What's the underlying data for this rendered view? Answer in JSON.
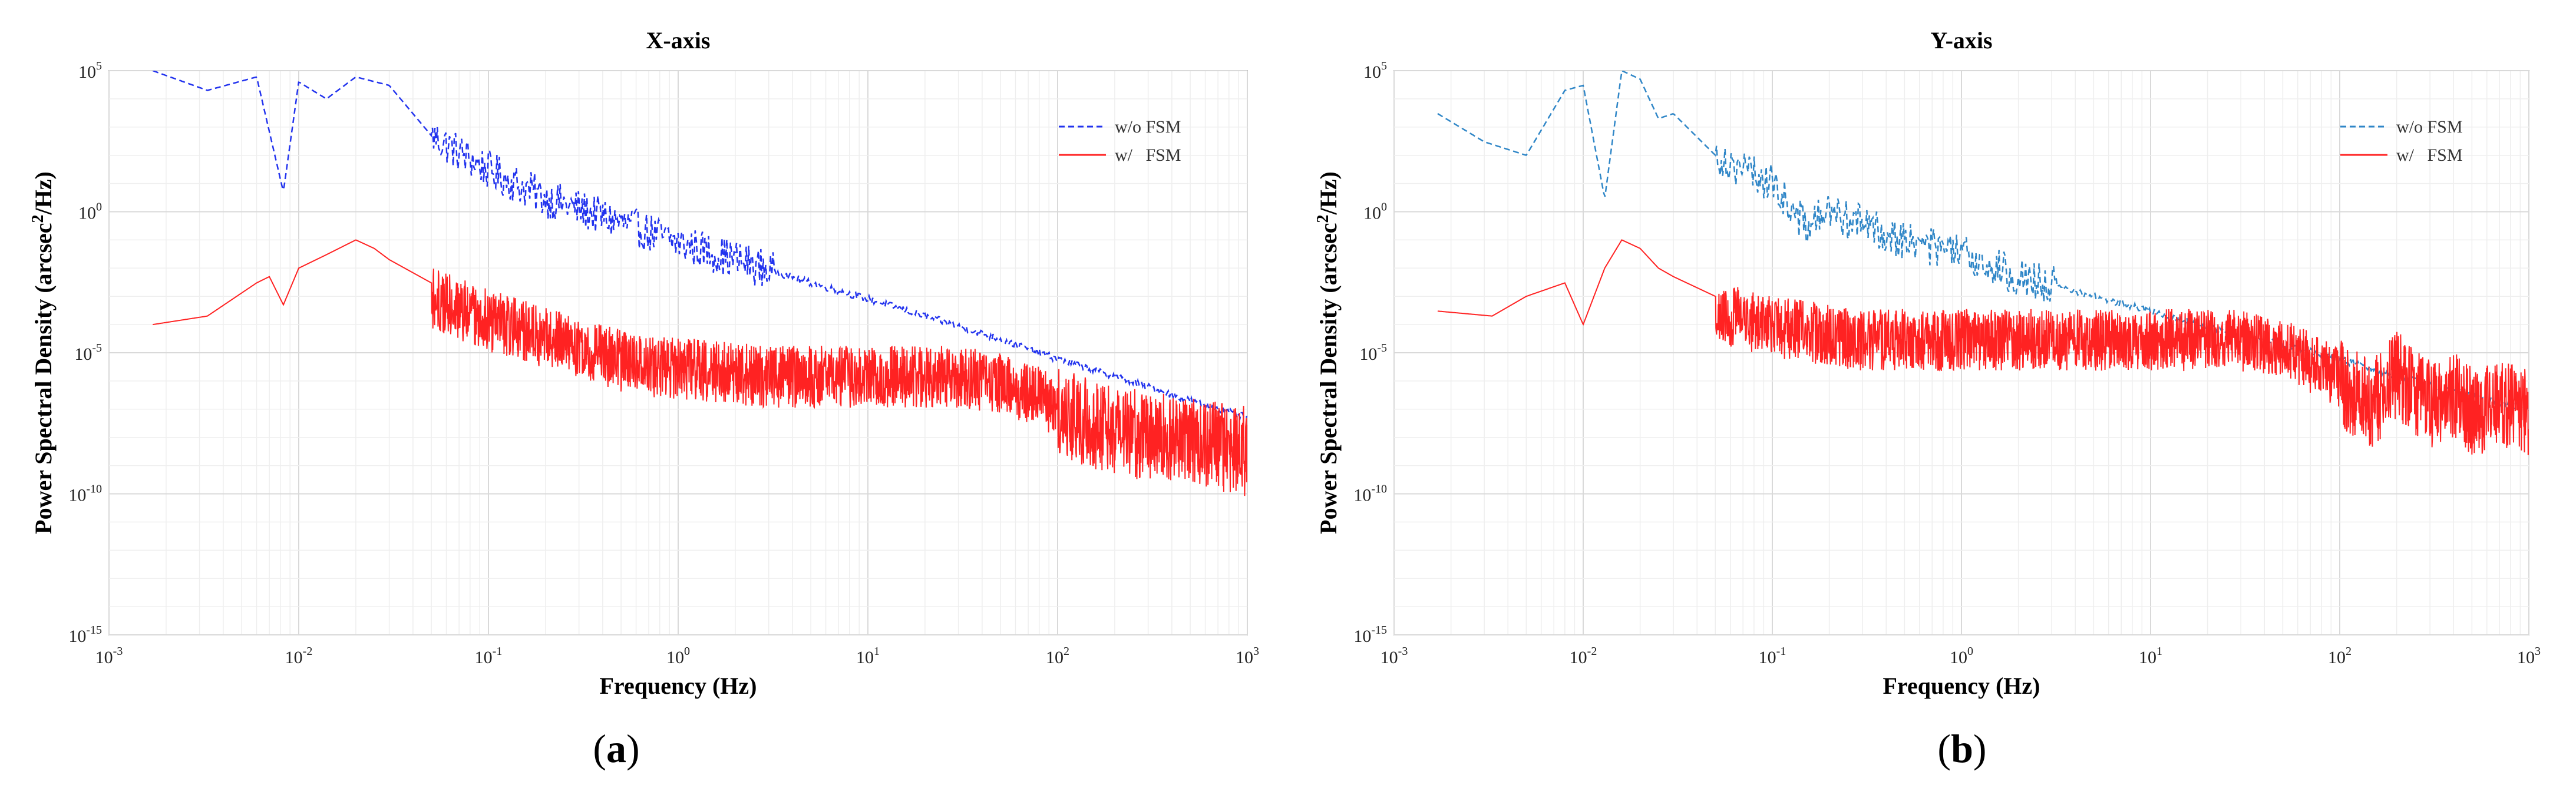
{
  "captions": [
    {
      "open": "(",
      "letter": "a",
      "close": ")"
    },
    {
      "open": "(",
      "letter": "b",
      "close": ")"
    }
  ],
  "chart_data": [
    {
      "type": "line",
      "title": "X-axis",
      "xlabel": "Frequency (Hz)",
      "ylabel_main": "Power Spectral Density (arcsec",
      "ylabel_sup": "2",
      "ylabel_end": "/Hz)",
      "xscale": "log",
      "yscale": "log",
      "xlim": [
        0.001,
        1000
      ],
      "ylim": [
        1e-15,
        100000
      ],
      "grid": true,
      "legend_position": "top-right",
      "x_tick_exponents": [
        "-3",
        "-2",
        "-1",
        "0",
        "1",
        "2",
        "3"
      ],
      "y_tick_exponents": [
        "-15",
        "-10",
        "-5",
        "0",
        "5"
      ],
      "tick_base": "10",
      "series": [
        {
          "name": "w/o FSM",
          "color": "#2233ee",
          "dash": "dashed",
          "x": [
            0.0017,
            0.0033,
            0.006,
            0.0083,
            0.01,
            0.014,
            0.02,
            0.03,
            0.05,
            0.1,
            0.2,
            0.5,
            1,
            2,
            5,
            10,
            20,
            50,
            100,
            200,
            500,
            1000
          ],
          "y": [
            100000,
            20000,
            60000,
            5,
            40000,
            10000,
            60000,
            30000,
            500,
            30,
            3,
            0.4,
            0.08,
            0.02,
            0.003,
            0.0008,
            0.0002,
            3e-05,
            6e-06,
            1.5e-06,
            2e-07,
            5e-08
          ]
        },
        {
          "name": "w/   FSM",
          "color": "#ff2222",
          "dash": "solid",
          "x": [
            0.0017,
            0.0033,
            0.006,
            0.007,
            0.0083,
            0.01,
            0.014,
            0.02,
            0.025,
            0.03,
            0.05,
            0.1,
            0.3,
            0.7,
            1,
            3,
            10,
            30,
            50,
            100,
            200,
            500,
            1000
          ],
          "y": [
            0.0001,
            0.0002,
            0.003,
            0.005,
            0.0005,
            0.01,
            0.03,
            0.1,
            0.05,
            0.02,
            0.003,
            0.0005,
            5e-05,
            1e-05,
            1e-05,
            5e-06,
            5e-06,
            5e-06,
            3e-06,
            5e-07,
            1e-07,
            5e-08,
            2e-08
          ]
        }
      ]
    },
    {
      "type": "line",
      "title": "Y-axis",
      "xlabel": "Frequency (Hz)",
      "ylabel_main": "Power Spectral Density (arcsec",
      "ylabel_sup": "2",
      "ylabel_end": "/Hz)",
      "xscale": "log",
      "yscale": "log",
      "xlim": [
        0.001,
        1000
      ],
      "ylim": [
        1e-15,
        100000
      ],
      "grid": true,
      "legend_position": "top-right",
      "x_tick_exponents": [
        "-3",
        "-2",
        "-1",
        "0",
        "1",
        "2",
        "3"
      ],
      "y_tick_exponents": [
        "-15",
        "-10",
        "-5",
        "0",
        "5"
      ],
      "tick_base": "10",
      "series": [
        {
          "name": "w/o FSM",
          "color": "#2f86c7",
          "dash": "dashed",
          "x": [
            0.0017,
            0.003,
            0.005,
            0.008,
            0.01,
            0.013,
            0.016,
            0.02,
            0.025,
            0.03,
            0.05,
            0.1,
            0.15,
            0.2,
            0.5,
            1,
            2,
            5,
            10,
            20,
            50,
            100,
            200,
            500,
            1000
          ],
          "y": [
            3000,
            300,
            100,
            20000,
            30000,
            3,
            100000,
            50000,
            2000,
            3000,
            100,
            10,
            0.3,
            1,
            0.1,
            0.03,
            0.005,
            0.001,
            0.0003,
            8e-05,
            2e-05,
            6e-06,
            1.5e-06,
            3e-07,
            1e-07
          ]
        },
        {
          "name": "w/   FSM",
          "color": "#ff2222",
          "dash": "solid",
          "x": [
            0.0017,
            0.0033,
            0.005,
            0.008,
            0.01,
            0.013,
            0.016,
            0.02,
            0.025,
            0.03,
            0.05,
            0.1,
            0.3,
            1,
            3,
            10,
            30,
            50,
            100,
            150,
            200,
            300,
            400,
            500,
            700,
            1000
          ],
          "y": [
            0.0003,
            0.0002,
            0.001,
            0.003,
            0.0001,
            0.01,
            0.1,
            0.05,
            0.01,
            0.005,
            0.001,
            0.0003,
            0.0001,
            0.0001,
            0.0001,
            0.0001,
            0.0001,
            5e-05,
            5e-06,
            1e-06,
            1e-05,
            1e-06,
            2e-06,
            5e-07,
            1e-06,
            5e-07
          ]
        }
      ]
    }
  ]
}
